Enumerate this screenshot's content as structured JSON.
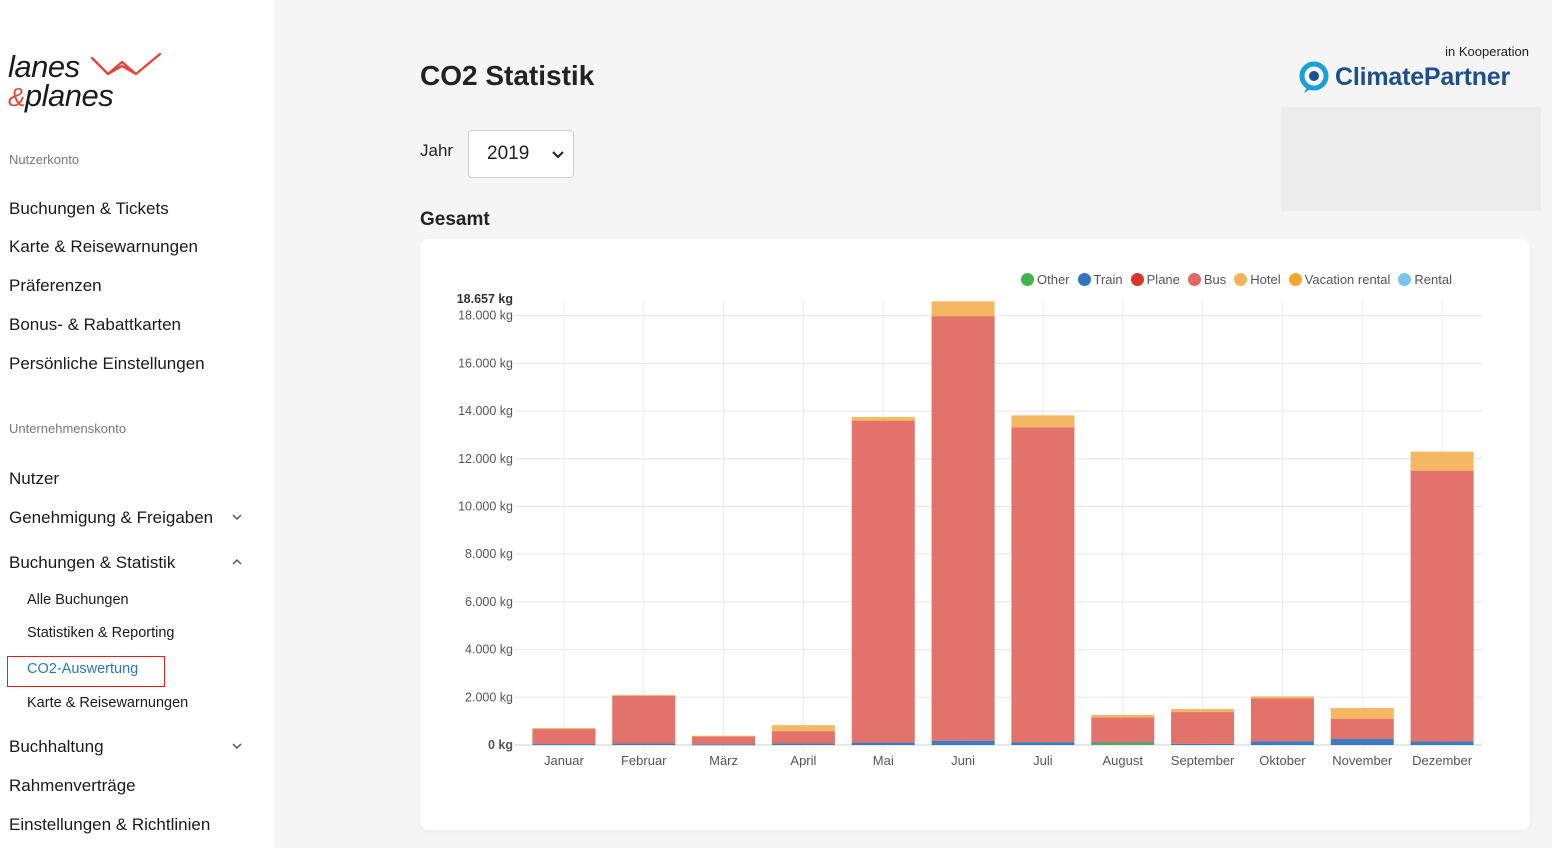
{
  "brand": {
    "logo_line1": "lanes",
    "logo_amp": "&",
    "logo_line2": "planes",
    "accent": "#e2463a"
  },
  "sidebar": {
    "user_section_label": "Nutzerkonto",
    "user_items": [
      {
        "label": "Buchungen & Tickets"
      },
      {
        "label": "Karte & Reisewarnungen"
      },
      {
        "label": "Präferenzen"
      },
      {
        "label": "Bonus- & Rabattkarten"
      },
      {
        "label": "Persönliche Einstellungen"
      }
    ],
    "company_section_label": "Unternehmenskonto",
    "company_items": [
      {
        "label": "Nutzer"
      },
      {
        "label": "Genehmigung & Freigaben",
        "expanded": false
      },
      {
        "label": "Buchungen & Statistik",
        "expanded": true
      },
      {
        "label": "Buchhaltung",
        "expanded": false
      },
      {
        "label": "Rahmenverträge"
      },
      {
        "label": "Einstellungen & Richtlinien"
      }
    ],
    "sub_items": [
      {
        "label": "Alle Buchungen"
      },
      {
        "label": "Statistiken & Reporting"
      },
      {
        "label": "CO2-Auswertung",
        "active": true
      },
      {
        "label": "Karte & Reisewarnungen"
      }
    ]
  },
  "header": {
    "title": "CO2 Statistik",
    "coop_label": "in Kooperation",
    "partner_name": "ClimatePartner"
  },
  "filter": {
    "year_label": "Jahr",
    "year_value": "2019"
  },
  "section_title": "Gesamt",
  "chart_data": {
    "type": "bar",
    "stacked": true,
    "categories": [
      "Januar",
      "Februar",
      "März",
      "April",
      "Mai",
      "Juni",
      "Juli",
      "August",
      "September",
      "Oktober",
      "November",
      "Dezember"
    ],
    "y_max_label": "18.657 kg",
    "y_max": 18657,
    "y_ticks": [
      0,
      2000,
      4000,
      6000,
      8000,
      10000,
      12000,
      14000,
      16000,
      18000
    ],
    "y_tick_labels": [
      "0 kg",
      "2.000 kg",
      "4.000 kg",
      "6.000 kg",
      "8.000 kg",
      "10.000 kg",
      "12.000 kg",
      "14.000 kg",
      "16.000 kg",
      "18.000 kg"
    ],
    "legend_position": "top-right",
    "grid": true,
    "series": [
      {
        "name": "Other",
        "color": "#3cb54a",
        "values": [
          0,
          0,
          0,
          0,
          0,
          0,
          0,
          80,
          0,
          0,
          0,
          0
        ]
      },
      {
        "name": "Train",
        "color": "#2f75c0",
        "values": [
          40,
          60,
          30,
          60,
          100,
          180,
          120,
          30,
          50,
          160,
          250,
          150
        ]
      },
      {
        "name": "Plane",
        "color": "#d9342b",
        "values": [
          0,
          0,
          0,
          0,
          0,
          0,
          0,
          0,
          0,
          0,
          0,
          0
        ]
      },
      {
        "name": "Bus",
        "color": "#e06a62",
        "values": [
          630,
          2000,
          330,
          520,
          13500,
          17800,
          13200,
          1050,
          1330,
          1800,
          850,
          11350
        ]
      },
      {
        "name": "Hotel",
        "color": "#f4b35a",
        "values": [
          40,
          40,
          30,
          250,
          150,
          620,
          500,
          100,
          130,
          80,
          450,
          800
        ]
      },
      {
        "name": "Vacation rental",
        "color": "#f4a72e",
        "values": [
          0,
          0,
          0,
          0,
          0,
          0,
          0,
          0,
          0,
          0,
          0,
          0
        ]
      },
      {
        "name": "Rental",
        "color": "#7cc4ec",
        "values": [
          0,
          0,
          0,
          0,
          0,
          0,
          0,
          0,
          0,
          0,
          0,
          0
        ]
      }
    ]
  },
  "icons": {
    "chevron_down": "chevron-down-icon",
    "chevron_up": "chevron-up-icon",
    "select_caret": "caret-down-icon",
    "partner_logo": "climatepartner-logo-icon",
    "brand_mark": "plane-outline-icon"
  }
}
